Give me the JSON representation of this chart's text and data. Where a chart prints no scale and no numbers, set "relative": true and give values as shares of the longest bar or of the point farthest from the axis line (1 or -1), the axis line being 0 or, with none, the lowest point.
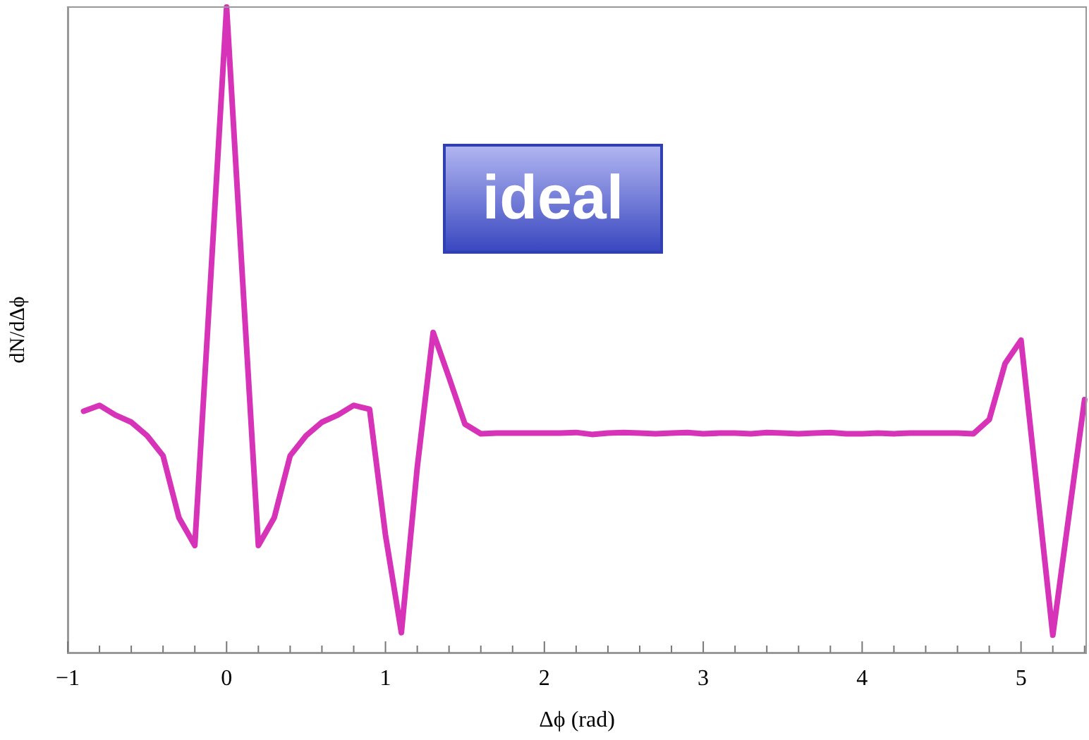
{
  "chart_data": {
    "type": "line",
    "relative": true,
    "xlabel": "Δϕ (rad)",
    "ylabel": "dN/dΔϕ",
    "annotations": [
      "ideal"
    ],
    "xlim": [
      -1,
      5.41
    ],
    "xticks": [
      {
        "value": -1,
        "label": "−1"
      },
      {
        "value": -0.8,
        "label": null
      },
      {
        "value": -0.6,
        "label": null
      },
      {
        "value": -0.4,
        "label": null
      },
      {
        "value": -0.2,
        "label": null
      },
      0,
      {
        "value": 0.2,
        "label": null
      },
      {
        "value": 0.4,
        "label": null
      },
      {
        "value": 0.6,
        "label": null
      },
      {
        "value": 0.8,
        "label": null
      },
      1,
      {
        "value": 1.2,
        "label": null
      },
      {
        "value": 1.4,
        "label": null
      },
      {
        "value": 1.6,
        "label": null
      },
      {
        "value": 1.8,
        "label": null
      },
      2,
      {
        "value": 2.2,
        "label": null
      },
      {
        "value": 2.4,
        "label": null
      },
      {
        "value": 2.6,
        "label": null
      },
      {
        "value": 2.8,
        "label": null
      },
      3,
      {
        "value": 3.2,
        "label": null
      },
      {
        "value": 3.4,
        "label": null
      },
      {
        "value": 3.6,
        "label": null
      },
      {
        "value": 3.8,
        "label": null
      },
      4,
      {
        "value": 4.2,
        "label": null
      },
      {
        "value": 4.4,
        "label": null
      },
      {
        "value": 4.6,
        "label": null
      },
      {
        "value": 4.8,
        "label": null
      },
      5,
      {
        "value": 5.2,
        "label": null
      },
      {
        "value": 5.4,
        "label": null
      }
    ],
    "x": [
      -0.9,
      -0.8,
      -0.7,
      -0.6,
      -0.5,
      -0.4,
      -0.3,
      -0.2,
      -0.1,
      0,
      0.1,
      0.2,
      0.3,
      0.4,
      0.5,
      0.6,
      0.7,
      0.8,
      0.9,
      1.0,
      1.1,
      1.2,
      1.3,
      1.4,
      1.5,
      1.6,
      1.7,
      1.8,
      1.9,
      2.0,
      2.1,
      2.2,
      2.3,
      2.4,
      2.5,
      2.6,
      2.7,
      2.8,
      2.9,
      3.0,
      3.1,
      3.2,
      3.3,
      3.4,
      3.5,
      3.6,
      3.7,
      3.8,
      3.9,
      4.0,
      4.1,
      4.2,
      4.3,
      4.4,
      4.5,
      4.6,
      4.7,
      4.8,
      4.9,
      5.0,
      5.1,
      5.2,
      5.3,
      5.4
    ],
    "series": [
      {
        "color": "#d633b8",
        "values": [
          0.374,
          0.383,
          0.368,
          0.357,
          0.336,
          0.305,
          0.209,
          0.166,
          0.58,
          1,
          0.58,
          0.166,
          0.209,
          0.305,
          0.336,
          0.357,
          0.368,
          0.383,
          0.377,
          0.182,
          0.031,
          0.287,
          0.496,
          0.426,
          0.354,
          0.339,
          0.34,
          0.34,
          0.34,
          0.34,
          0.34,
          0.341,
          0.338,
          0.34,
          0.341,
          0.34,
          0.339,
          0.34,
          0.341,
          0.339,
          0.34,
          0.34,
          0.339,
          0.341,
          0.34,
          0.339,
          0.34,
          0.341,
          0.339,
          0.339,
          0.34,
          0.339,
          0.34,
          0.34,
          0.34,
          0.34,
          0.339,
          0.361,
          0.448,
          0.484,
          0.256,
          0.027,
          0.21,
          0.392
        ]
      }
    ],
    "grid": false,
    "legend": false,
    "marker": "none",
    "line_style": "solid"
  }
}
